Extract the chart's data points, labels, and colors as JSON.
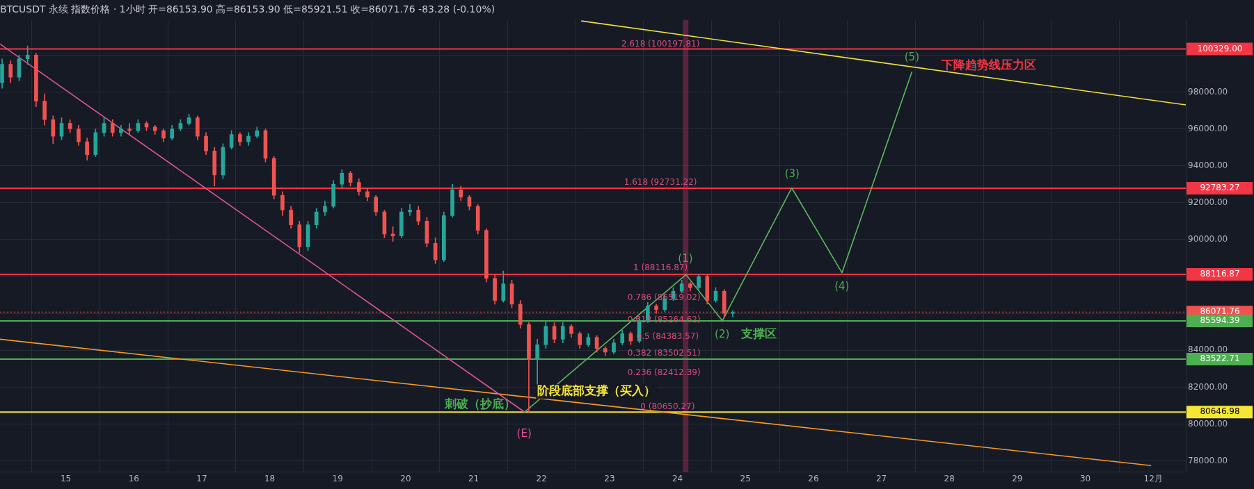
{
  "chart_data": {
    "type": "candlestick",
    "title": "BTCUSDT 永续 指数价格 · 1小时 开=86153.90 高=86153.90 低=85921.51 收=86071.76 -83.28 (-0.10%)",
    "x": [
      "--11-14T01:30",
      "--11-14T04:30",
      "--11-14T07:30",
      "--11-14T10:30",
      "--11-14T13:30",
      "--11-14T16:30",
      "--11-14T19:30",
      "--11-14T22:30",
      "--11-15T01:30",
      "--11-15T04:30",
      "--11-15T07:30",
      "--11-15T10:30",
      "--11-15T13:30",
      "--11-15T16:30",
      "--11-15T19:30",
      "--11-15T22:30",
      "--11-16T01:30",
      "--11-16T04:30",
      "--11-16T07:30",
      "--11-16T10:30",
      "--11-16T13:30",
      "--11-16T16:30",
      "--11-16T19:30",
      "--11-16T22:30",
      "--11-17T01:30",
      "--11-17T04:30",
      "--11-17T07:30",
      "--11-17T10:30",
      "--11-17T13:30",
      "--11-17T16:30",
      "--11-17T19:30",
      "--11-17T22:30",
      "--11-18T01:30",
      "--11-18T04:30",
      "--11-18T07:30",
      "--11-18T10:30",
      "--11-18T13:30",
      "--11-18T16:30",
      "--11-18T19:30",
      "--11-18T22:30",
      "--11-19T01:30",
      "--11-19T04:30",
      "--11-19T07:30",
      "--11-19T10:30",
      "--11-19T13:30",
      "--11-19T16:30",
      "--11-19T19:30",
      "--11-19T22:30",
      "--11-20T01:30",
      "--11-20T04:30",
      "--11-20T07:30",
      "--11-20T10:30",
      "--11-20T13:30",
      "--11-20T16:30",
      "--11-20T19:30",
      "--11-20T22:30",
      "--11-21T01:30",
      "--11-21T04:30",
      "--11-21T07:30",
      "--11-21T10:30",
      "--11-21T13:30",
      "--11-21T16:30",
      "--11-21T19:30",
      "--11-21T22:30",
      "--11-22T01:30",
      "--11-22T04:30",
      "--11-22T07:30",
      "--11-22T10:30",
      "--11-22T13:30",
      "--11-22T16:30",
      "--11-22T19:30",
      "--11-22T22:30",
      "--11-23T01:30",
      "--11-23T04:30",
      "--11-23T07:30",
      "--11-23T10:30",
      "--11-23T13:30",
      "--11-23T16:30",
      "--11-23T19:30",
      "--11-23T22:30",
      "--11-24T01:30",
      "--11-24T04:30",
      "--11-24T07:30",
      "--11-24T10:30",
      "--11-24T13:30",
      "--11-24T16:30",
      "--11-24T19:30"
    ],
    "ohlc": [
      [
        98500,
        99800,
        98200,
        99500
      ],
      [
        99500,
        99700,
        98500,
        98800
      ],
      [
        98800,
        100000,
        98600,
        99800
      ],
      [
        99800,
        100500,
        99500,
        100000
      ],
      [
        100000,
        100100,
        97200,
        97500
      ],
      [
        97500,
        97900,
        96200,
        96500
      ],
      [
        96500,
        96700,
        95200,
        95600
      ],
      [
        95600,
        96600,
        95400,
        96300
      ],
      [
        96300,
        96500,
        95800,
        96000
      ],
      [
        96000,
        96200,
        95100,
        95300
      ],
      [
        95300,
        95500,
        94300,
        94600
      ],
      [
        94600,
        96000,
        94500,
        95800
      ],
      [
        95800,
        96600,
        95600,
        96300
      ],
      [
        96300,
        96500,
        95600,
        95800
      ],
      [
        95800,
        96200,
        95600,
        96000
      ],
      [
        96000,
        96300,
        95700,
        95900
      ],
      [
        95900,
        96500,
        95800,
        96300
      ],
      [
        96300,
        96400,
        95900,
        96100
      ],
      [
        96100,
        96200,
        95700,
        95900
      ],
      [
        95900,
        96000,
        95300,
        95500
      ],
      [
        95500,
        96200,
        95400,
        96000
      ],
      [
        96000,
        96500,
        95900,
        96300
      ],
      [
        96300,
        96800,
        96200,
        96600
      ],
      [
        96600,
        96700,
        95400,
        95600
      ],
      [
        95600,
        95800,
        94600,
        94800
      ],
      [
        94800,
        95000,
        92900,
        93500
      ],
      [
        93500,
        95200,
        93300,
        95000
      ],
      [
        95000,
        95900,
        94900,
        95700
      ],
      [
        95700,
        95800,
        95100,
        95300
      ],
      [
        95300,
        95800,
        95100,
        95600
      ],
      [
        95600,
        96100,
        95500,
        95900
      ],
      [
        95900,
        96000,
        94200,
        94400
      ],
      [
        94400,
        94500,
        92200,
        92400
      ],
      [
        92400,
        92600,
        91300,
        91600
      ],
      [
        91600,
        91800,
        90600,
        90800
      ],
      [
        90800,
        91000,
        89300,
        89600
      ],
      [
        89600,
        91000,
        89400,
        90800
      ],
      [
        90800,
        91700,
        90600,
        91500
      ],
      [
        91500,
        92100,
        91300,
        91800
      ],
      [
        91800,
        93200,
        91700,
        93000
      ],
      [
        93000,
        93800,
        92800,
        93600
      ],
      [
        93600,
        93700,
        92900,
        93100
      ],
      [
        93100,
        93300,
        92400,
        92600
      ],
      [
        92600,
        92800,
        92100,
        92300
      ],
      [
        92300,
        92400,
        91300,
        91500
      ],
      [
        91500,
        91600,
        90100,
        90300
      ],
      [
        90300,
        90700,
        89900,
        90200
      ],
      [
        90200,
        91700,
        90100,
        91500
      ],
      [
        91500,
        91900,
        91300,
        91600
      ],
      [
        91600,
        91800,
        90800,
        91000
      ],
      [
        91000,
        91200,
        89600,
        89800
      ],
      [
        89800,
        90100,
        88700,
        88900
      ],
      [
        88900,
        91500,
        88800,
        91300
      ],
      [
        91300,
        93000,
        91200,
        92700
      ],
      [
        92700,
        92900,
        92100,
        92300
      ],
      [
        92300,
        92400,
        91600,
        91800
      ],
      [
        91800,
        91900,
        90300,
        90500
      ],
      [
        90500,
        90600,
        87700,
        87900
      ],
      [
        87900,
        88100,
        86500,
        86700
      ],
      [
        86700,
        88300,
        86600,
        87600
      ],
      [
        87600,
        87800,
        86300,
        86500
      ],
      [
        86500,
        86700,
        85200,
        85400
      ],
      [
        85400,
        85500,
        80650,
        83500
      ],
      [
        83500,
        84600,
        82100,
        84300
      ],
      [
        84300,
        85600,
        84100,
        85300
      ],
      [
        85300,
        85500,
        84400,
        84600
      ],
      [
        84600,
        85500,
        84400,
        85300
      ],
      [
        85300,
        85400,
        84700,
        84900
      ],
      [
        84900,
        85000,
        84100,
        84300
      ],
      [
        84300,
        84900,
        84200,
        84700
      ],
      [
        84700,
        84800,
        83900,
        84100
      ],
      [
        84100,
        84200,
        83700,
        83900
      ],
      [
        83900,
        84600,
        83800,
        84400
      ],
      [
        84400,
        85100,
        84300,
        84900
      ],
      [
        84900,
        85000,
        84300,
        84500
      ],
      [
        84500,
        85800,
        84400,
        85600
      ],
      [
        85600,
        86600,
        85500,
        86400
      ],
      [
        86400,
        86500,
        86000,
        86200
      ],
      [
        86200,
        87000,
        86100,
        86800
      ],
      [
        86800,
        87400,
        86700,
        87200
      ],
      [
        87200,
        87800,
        87100,
        87600
      ],
      [
        87600,
        87700,
        87200,
        87400
      ],
      [
        87400,
        88100,
        87300,
        88000
      ],
      [
        88000,
        88100,
        86500,
        86700
      ],
      [
        86700,
        87400,
        86600,
        87200
      ],
      [
        87200,
        87300,
        85800,
        86000
      ],
      [
        86000,
        86150,
        85800,
        86050
      ]
    ],
    "colors": [
      "#26a69a",
      "#ef5350",
      "#26a69a",
      "#26a69a",
      "#ef5350",
      "#ef5350",
      "#ef5350",
      "#26a69a",
      "#ef5350",
      "#ef5350",
      "#ef5350",
      "#26a69a",
      "#26a69a",
      "#ef5350",
      "#26a69a",
      "#ef5350",
      "#26a69a",
      "#ef5350",
      "#ef5350",
      "#ef5350",
      "#26a69a",
      "#26a69a",
      "#26a69a",
      "#ef5350",
      "#ef5350",
      "#ef5350",
      "#26a69a",
      "#26a69a",
      "#ef5350",
      "#26a69a",
      "#26a69a",
      "#ef5350",
      "#ef5350",
      "#ef5350",
      "#ef5350",
      "#ef5350",
      "#26a69a",
      "#26a69a",
      "#26a69a",
      "#26a69a",
      "#26a69a",
      "#ef5350",
      "#ef5350",
      "#ef5350",
      "#ef5350",
      "#ef5350",
      "#ef5350",
      "#26a69a",
      "#26a69a",
      "#ef5350",
      "#ef5350",
      "#ef5350",
      "#26a69a",
      "#26a69a",
      "#ef5350",
      "#ef5350",
      "#ef5350",
      "#ef5350",
      "#ef5350",
      "#26a69a",
      "#ef5350",
      "#ef5350",
      "#ef5350",
      "#26a69a",
      "#26a69a",
      "#ef5350",
      "#26a69a",
      "#ef5350",
      "#ef5350",
      "#26a69a",
      "#ef5350",
      "#ef5350",
      "#26a69a",
      "#26a69a",
      "#ef5350",
      "#26a69a",
      "#26a69a",
      "#ef5350",
      "#26a69a",
      "#26a69a",
      "#26a69a",
      "#ef5350",
      "#26a69a",
      "#ef5350",
      "#26a69a",
      "#ef5350",
      "#26a69a"
    ],
    "series": [
      {
        "type": "line",
        "color": "#e0559a",
        "x": [
          "--11-14T00:45",
          "--11-21T18:00"
        ],
        "values": [
          100600,
          80650
        ]
      },
      {
        "type": "line",
        "color": "#f59a23",
        "x": [
          "--11-14T00:45",
          "--11-30T23:15"
        ],
        "values": [
          84600,
          77750
        ]
      },
      {
        "type": "line",
        "color": "#f0e03a",
        "x": [
          "--11-22T14:00",
          "--12-01T11:30"
        ],
        "values": [
          101850,
          97300
        ]
      },
      {
        "type": "line",
        "color": "#5cb85c",
        "x": [
          "--11-21T18:00",
          "--11-24T03:00",
          "--11-24T15:50",
          "--11-25T16:20",
          "--11-26T10:05",
          "--11-27T10:48"
        ],
        "values": [
          80650,
          88100,
          85600,
          92800,
          88200,
          99100
        ]
      }
    ],
    "ref_lines": [
      {
        "axis": "y",
        "value": 100329,
        "label": "100329.00",
        "color": "#f23645"
      },
      {
        "axis": "y",
        "value": 92783.27,
        "label": "92783.27",
        "color": "#f23645"
      },
      {
        "axis": "y",
        "value": 88116.87,
        "label": "88116.87",
        "color": "#f23645"
      },
      {
        "axis": "y",
        "value": 86071.76,
        "label": "86071.76",
        "color": "#ef5350",
        "line_style": "dotted"
      },
      {
        "axis": "y",
        "value": 85594.39,
        "label": "85594.39",
        "color": "#4caf50"
      },
      {
        "axis": "y",
        "value": 83522.71,
        "label": "83522.71",
        "color": "#4caf50"
      },
      {
        "axis": "y",
        "value": 80646.98,
        "label": "80646.98",
        "color": "#f5e733"
      }
    ],
    "bands": [
      {
        "axis": "x",
        "from": "--11-24T01:55",
        "to": "--11-24T03:50",
        "color": "#b02c5c"
      }
    ],
    "annotations": [
      "2.618 (100197.81)",
      "1.618 (92731.22)",
      "1 (88116.87)",
      "0.786 (86519.02)",
      "0.618 (85264.62)",
      "0.5 (84383.57)",
      "0.382 (83502.51)",
      "0.236 (82412.39)",
      "0 (80650.27)",
      "(E)",
      "刺破（抄底）",
      "阶段底部支撑（买入）",
      "(1)",
      "(2)",
      "支撑区",
      "(3)",
      "(4)",
      "(5)",
      "下降趋势线压力区"
    ],
    "xlim": [
      "--11-14T00:45",
      "--12-01T11:30"
    ],
    "xticks": [
      {
        "value": "--11-15",
        "label": "15"
      },
      {
        "value": "--11-16",
        "label": "16"
      },
      {
        "value": "--11-17",
        "label": "17"
      },
      {
        "value": "--11-18",
        "label": "18"
      },
      {
        "value": "--11-19",
        "label": "19"
      },
      {
        "value": "--11-20",
        "label": "20"
      },
      {
        "value": "--11-21",
        "label": "21"
      },
      {
        "value": "--11-22",
        "label": "22"
      },
      {
        "value": "--11-23",
        "label": "23"
      },
      {
        "value": "--11-24",
        "label": "24"
      },
      {
        "value": "--11-25",
        "label": "25"
      },
      {
        "value": "--11-26",
        "label": "26"
      },
      {
        "value": "--11-27",
        "label": "27"
      },
      {
        "value": "--11-28",
        "label": "28"
      },
      {
        "value": "--11-29",
        "label": "29"
      },
      {
        "value": "--11-30",
        "label": "30"
      },
      {
        "value": "--12-01",
        "label": "12月"
      }
    ],
    "ylim": [
      77400,
      101900
    ],
    "yticks": [
      {
        "value": 78000,
        "label": "78000.00"
      },
      {
        "value": 80000,
        "label": "80000.00"
      },
      {
        "value": 82000,
        "label": "82000.00"
      },
      {
        "value": 84000,
        "label": "84000.00"
      },
      {
        "value": 86000,
        "label": null
      },
      {
        "value": 88000,
        "label": null
      },
      {
        "value": 90000,
        "label": "90000.00"
      },
      {
        "value": 92000,
        "label": "92000.00"
      },
      {
        "value": 94000,
        "label": "94000.00"
      },
      {
        "value": 96000,
        "label": "96000.00"
      },
      {
        "value": 98000,
        "label": "98000.00"
      },
      {
        "value": 100000,
        "label": null
      }
    ],
    "grid": true,
    "legend": false
  }
}
